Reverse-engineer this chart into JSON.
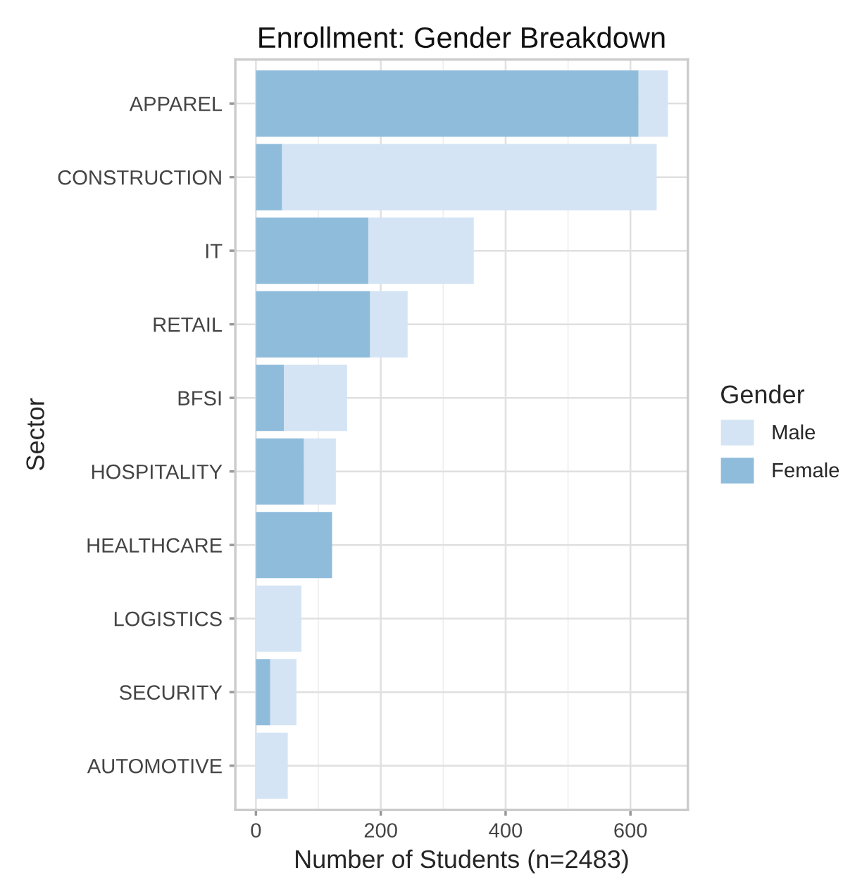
{
  "chart_data": {
    "type": "bar",
    "orientation": "horizontal",
    "stacked": true,
    "title": "Enrollment: Gender Breakdown",
    "xlabel": "Number of Students (n=2483)",
    "ylabel": "Sector",
    "legend_title": "Gender",
    "categories": [
      "APPAREL",
      "CONSTRUCTION",
      "IT",
      "RETAIL",
      "BFSI",
      "HOSPITALITY",
      "HEALTHCARE",
      "LOGISTICS",
      "SECURITY",
      "AUTOMOTIVE"
    ],
    "series": [
      {
        "name": "Female",
        "color": "#8fbcdb",
        "values": [
          613,
          42,
          180,
          183,
          45,
          77,
          122,
          null,
          23,
          null
        ]
      },
      {
        "name": "Male",
        "color": "#d4e4f4",
        "values": [
          47,
          600,
          169,
          60,
          101,
          51,
          null,
          73,
          42,
          51
        ]
      }
    ],
    "xlim": [
      -33,
      692
    ],
    "xticks": [
      0,
      200,
      400,
      600
    ],
    "grid": true,
    "legend": "right"
  }
}
